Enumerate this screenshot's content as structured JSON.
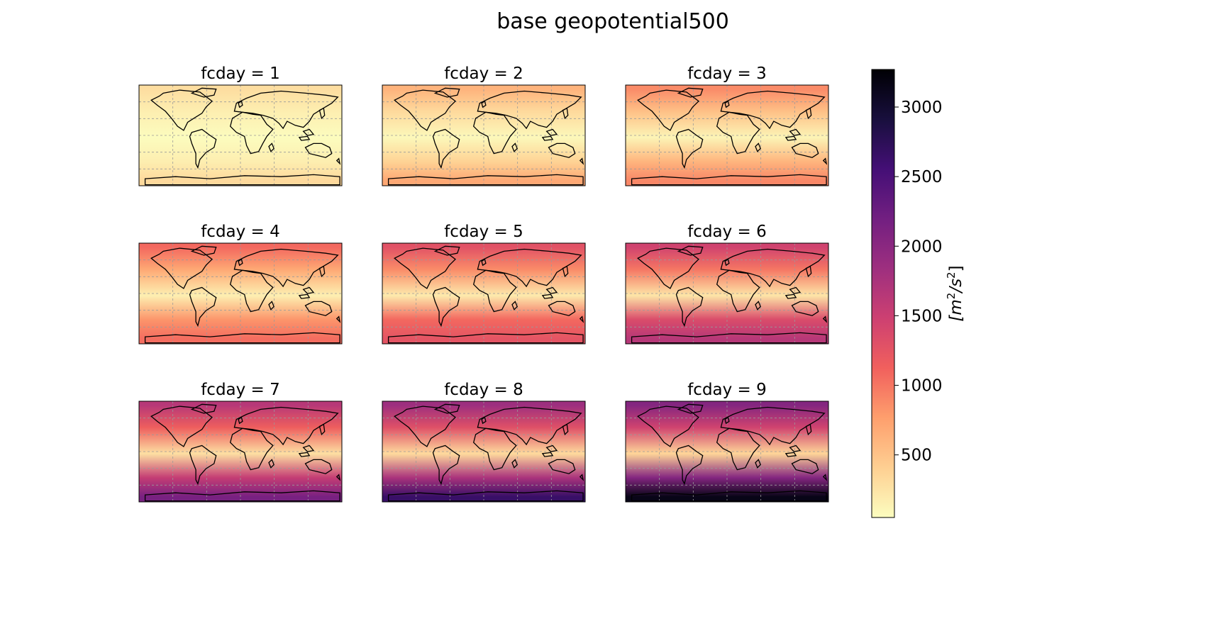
{
  "chart_data": {
    "type": "heatmap",
    "title": "base geopotential500",
    "colormap": "magma_r",
    "colorbar": {
      "label": "[m²/s²]",
      "label_base": "[m",
      "label_exp1": "2",
      "label_mid": "/s",
      "label_exp2": "2",
      "label_end": "]",
      "range": [
        50,
        3270
      ],
      "ticks": [
        500,
        1000,
        1500,
        2000,
        2500,
        3000
      ],
      "tick_labels": [
        "500",
        "1000",
        "1500",
        "2000",
        "2500",
        "3000"
      ],
      "colors": [
        "#fcfdbf",
        "#fecf92",
        "#fe9f6d",
        "#f1605d",
        "#cd4071",
        "#9e2f7f",
        "#721f81",
        "#440f76",
        "#180f3d",
        "#000004"
      ]
    },
    "panels": [
      {
        "title": "fcday = 1",
        "fcday": 1,
        "approx_band_values": {
          "north_polar": 300,
          "north_mid": 170,
          "tropics": 60,
          "south_mid": 170,
          "south_polar": 330
        }
      },
      {
        "title": "fcday = 2",
        "fcday": 2,
        "approx_band_values": {
          "north_polar": 620,
          "north_mid": 330,
          "tropics": 90,
          "south_mid": 380,
          "south_polar": 700
        }
      },
      {
        "title": "fcday = 3",
        "fcday": 3,
        "approx_band_values": {
          "north_polar": 880,
          "north_mid": 520,
          "tropics": 120,
          "south_mid": 600,
          "south_polar": 900
        }
      },
      {
        "title": "fcday = 4",
        "fcday": 4,
        "approx_band_values": {
          "north_polar": 1080,
          "north_mid": 700,
          "tropics": 160,
          "south_mid": 820,
          "south_polar": 1050
        }
      },
      {
        "title": "fcday = 5",
        "fcday": 5,
        "approx_band_values": {
          "north_polar": 1280,
          "north_mid": 880,
          "tropics": 200,
          "south_mid": 1080,
          "south_polar": 1250
        }
      },
      {
        "title": "fcday = 6",
        "fcday": 6,
        "approx_band_values": {
          "north_polar": 1450,
          "north_mid": 1000,
          "tropics": 240,
          "south_mid": 1350,
          "south_polar": 1650
        }
      },
      {
        "title": "fcday = 7",
        "fcday": 7,
        "approx_band_values": {
          "north_polar": 1650,
          "north_mid": 1150,
          "tropics": 280,
          "south_mid": 1550,
          "south_polar": 2150
        }
      },
      {
        "title": "fcday = 8",
        "fcday": 8,
        "approx_band_values": {
          "north_polar": 1850,
          "north_mid": 1300,
          "tropics": 320,
          "south_mid": 1750,
          "south_polar": 2650
        }
      },
      {
        "title": "fcday = 9",
        "fcday": 9,
        "approx_band_values": {
          "north_polar": 2050,
          "north_mid": 1450,
          "tropics": 360,
          "south_mid": 2050,
          "south_polar": 3150
        }
      }
    ]
  }
}
